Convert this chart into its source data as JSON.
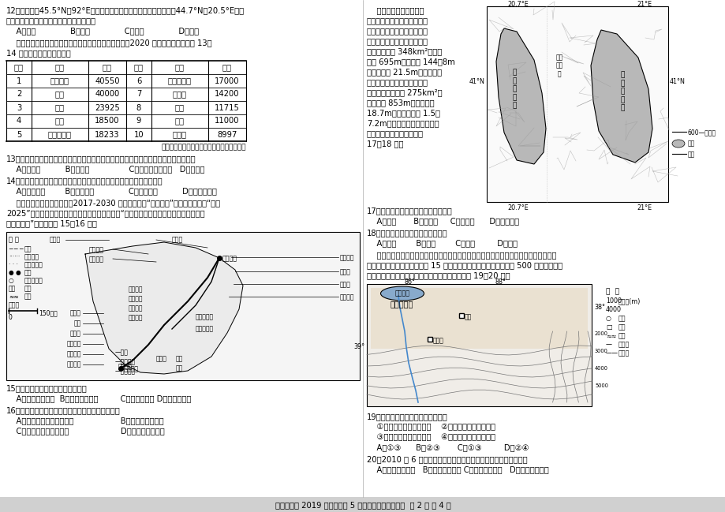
{
  "bg_color": "#ffffff",
  "page_width": 9.2,
  "page_height": 6.49,
  "dpi": 100,
  "title_text": "树德中学高 2019 级高二下期 5 月阶段性测试地理试题  第 2 页 共 4 页",
  "q12_line1": "12．与米兰（45.5°N，92°E；地中海气候）相比，导致贝尔格莱德（44.7°N，20.5°E；温",
  "q12_line2": "带大陆性气候）冬季均温更低的主要因素是",
  "q12_options": "    A．纬度              B．副高              C．洋流              D．地形",
  "table_intro1": "    读表「世界永久性草地和牧场面积前十位的国家表」（2020 年）。据此完成下面 13～",
  "table_intro2": "14 小题。（单位：万公顷）",
  "table_headers": [
    "排序",
    "国家",
    "面积",
    "排序",
    "国家",
    "面积"
  ],
  "table_data": [
    [
      "1",
      "澳大利亚",
      "40550",
      "6",
      "沙特阿拉伯",
      "17000"
    ],
    [
      "2",
      "中国",
      "40000",
      "7",
      "阿根廷",
      "14200"
    ],
    [
      "3",
      "美国",
      "23925",
      "8",
      "蒙古",
      "11715"
    ],
    [
      "4",
      "巴西",
      "18500",
      "9",
      "苏丹",
      "11000"
    ],
    [
      "5",
      "哈萨克斯坦",
      "18233",
      "10",
      "俣罗斯",
      "8997"
    ]
  ],
  "table_source": "（资料来源：联合国粮食及农业组织数据库）",
  "q13_text": "13．与澳大利亚、中国等国家相比，俣罗斯永久性草地和牧场面积比重较小的根本原因是",
  "q13_options": "    A．海拔高          B．降水多                C．寒流影响范围广   D．纬度高",
  "q14_text": "14．某乳企计划在沙特阿拉伯兴建驼奶基地，其生产用水最可能的来源是",
  "q14_options": "    A．人工降雨        B．修建水库              C．海水淡化          D．跨流域调水",
  "intro_line1": "    《中巴经济走廊远景规划（2017-2030 年）》将中国“一带一路”倡议与巴基斯坦“愿景",
  "intro_line2": "2025”深入对接，为中巴合作带来新机遇。下图为“我国企业在中巴经济走廊重大投资项目",
  "intro_line3": "分布示意图”，读图回答 15～16 题。",
  "q15_text": "15．我国企业投资的项目主要集中于",
  "q15_options": "    A．采矿和制造业  B．金融和零售业         C．交通和能源 D．教育和医疗",
  "q16_text": "16．影响我国企业投资项目地域分布的最主要因素是",
  "q16_options_a": "    A．市场规模和劳动力数量                   B．区位和资源禀赋",
  "q16_options_c": "    C．基础设施和生态环境                     D．政策和文化传统",
  "r_intro_lines": [
    "    奥赫里德湖和普雷斯帕",
    "湖位于巴尔干半岛，是沿断层",
    "形成的典型构造湖，由岩性为",
    "石灰岩的加利契蒙山相隔。奥",
    "赫里德湖面积 348km²，湖面",
    "海拔 695m，平均深 144．8m",
    "湖水透明度 21.5m，是欧洲透",
    "明度最高的湖泊，渔产不甚丰",
    "富；普雷斯帕湖面 275km²，",
    "湖面海拔 853m，平均深度",
    "18.7m，湖水透明度 1.5～",
    "7.2m，透明度湖心最大、近岸",
    "较小，渔产颌丰。据此完成",
    "17～18 题。"
  ],
  "q17_text": "17．奥赫里德湖湖水的主要补给来源是",
  "q17_options": "    A．雨水       B．河流水     C．地下水      D．冰雪融水",
  "q18_text": "18．导致两湖渔产差异的主要因素是",
  "q18_options": "    A．水温        B．水深        C．水量         D．水质",
  "tarim_line1": "    车尔臣河发源于昆仑山北坡，在若羌县境内注入台特玛湖。由于水资源的不合理利用，",
  "tarim_line2": "台特玛湖曾一度干涸。经过近 15 年的生态输水，台特玛湖出现了近 500 平方公里的湿",
  "tarim_line3": "地，生态环境不断改善。读车尔臣河流域图，回答 19～20 题。",
  "q19_text": "19．台特玛湖大面积湿地的出现导致",
  "q19_opt1": "    ①土壤水分条件得以改善    ②土壤养分条件明显改善",
  "q19_opt2": "    ③湖区的生物多样性增加    ④湖区灰溢农田面积增加",
  "q19_abcd": "    A．①③      B．②③       C．①③         D．②④",
  "q20_text": "20．2010 年 6 月，车尔臣河流域发生罕见洪涝灾害，推测其原因是",
  "q20_options": "    A．气温异常升高   B．冷锋带来暴雨 C．暖锋带来降水   D．气旋活动增强"
}
